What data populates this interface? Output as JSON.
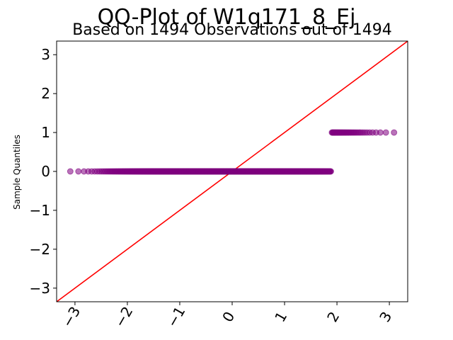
{
  "chart_data": {
    "type": "scatter",
    "title": "QQ-Plot of W1q171_8_Ej",
    "subtitle": "Based on 1494 Observations out of 1494",
    "xlabel": "",
    "ylabel": "Sample Quantiles",
    "xlim": [
      -3.35,
      3.35
    ],
    "ylim": [
      -3.35,
      3.35
    ],
    "x_ticks": [
      -3,
      -2,
      -1,
      0,
      1,
      2,
      3
    ],
    "y_ticks": [
      -3,
      -2,
      -1,
      0,
      1,
      2,
      3
    ],
    "x_tick_labels": [
      "−3",
      "−2",
      "−1",
      "0",
      "1",
      "2",
      "3"
    ],
    "y_tick_labels": [
      "−3",
      "−2",
      "−1",
      "0",
      "1",
      "2",
      "3"
    ],
    "x_tick_rotation_deg": 60,
    "grid": false,
    "series": [
      {
        "values_y": 0,
        "x_min": -3.2,
        "x_max": 1.89,
        "color": "#800080",
        "opacity": 0.55,
        "marker": "circle"
      },
      {
        "values_y": 1,
        "x_min": 1.9,
        "x_max": 3.2,
        "color": "#800080",
        "opacity": 0.55,
        "marker": "circle"
      }
    ],
    "reference_line": {
      "slope": 1,
      "intercept": 0,
      "color": "#ff0000"
    }
  }
}
